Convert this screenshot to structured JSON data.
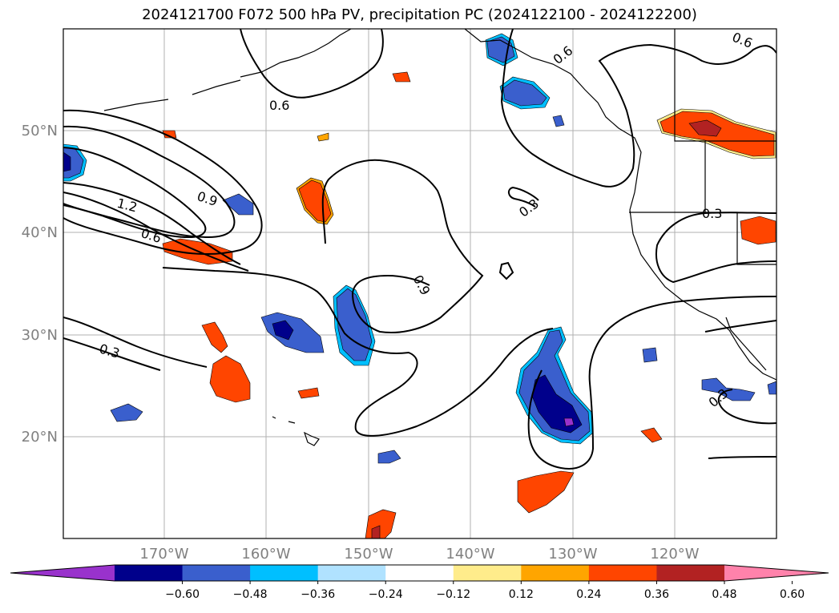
{
  "title": "2024121700 F072 500 hPa PV, precipitation PC (2024122100 - 2024122200)",
  "latitude_labels": [
    "50°N",
    "40°N",
    "30°N",
    "20°N"
  ],
  "longitude_labels": [
    "170°W",
    "160°W",
    "150°W",
    "140°W",
    "130°W",
    "120°W"
  ],
  "contour_labels": [
    "0.6",
    "0.6",
    "0.6",
    "1.2",
    "0.9",
    "0.6",
    "0.3",
    "0.9",
    "0.3",
    "0.3",
    "0.3"
  ],
  "colorbar": {
    "ticks": [
      "−0.60",
      "−0.48",
      "−0.36",
      "−0.24",
      "−0.12",
      "0.12",
      "0.24",
      "0.36",
      "0.48",
      "0.60"
    ],
    "colors": [
      "#9932CC",
      "#00008B",
      "#3A5FCD",
      "#00BFFF",
      "#B0E2FF",
      "#FFFFFF",
      "#FFEC8B",
      "#FFA500",
      "#FF4500",
      "#B22222",
      "#FF82AB"
    ]
  }
}
